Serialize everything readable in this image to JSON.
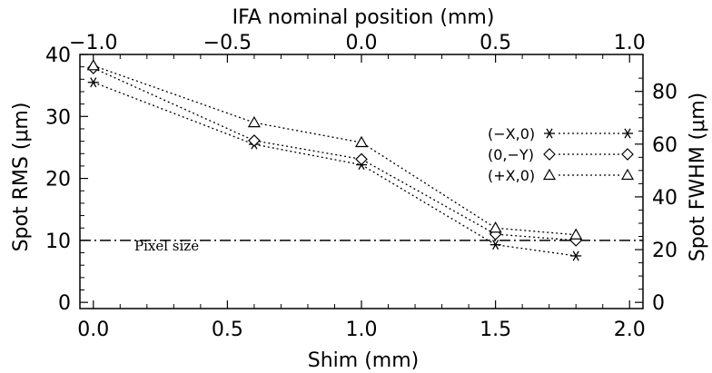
{
  "chart_data": {
    "type": "line",
    "x_axis": {
      "label": "Shim (mm)",
      "range": [
        -0.05,
        2.05
      ],
      "ticks": [
        0.0,
        0.5,
        1.0,
        1.5,
        2.0
      ],
      "tick_labels": [
        "0.0",
        "0.5",
        "1.0",
        "1.5",
        "2.0"
      ]
    },
    "x2_axis": {
      "label": "IFA nominal position (mm)",
      "tick_labels": [
        "−1.0",
        "−0.5",
        "0.0",
        "0.5",
        "1.0"
      ]
    },
    "y_axis": {
      "label": "Spot RMS (μm)",
      "range": [
        -1,
        40
      ],
      "ticks": [
        0,
        10,
        20,
        30,
        40
      ],
      "tick_labels": [
        "0",
        "10",
        "20",
        "30",
        "40"
      ]
    },
    "y2_axis": {
      "label": "Spot FWHM (μm)",
      "ticks": [
        0,
        20,
        40,
        60,
        80
      ],
      "tick_labels": [
        "0",
        "20",
        "40",
        "60",
        "80"
      ],
      "scale_factor": 2.35
    },
    "grid": false,
    "legend": {
      "placement": "right",
      "entries": [
        {
          "label": "(−X,0)",
          "marker": "asterisk"
        },
        {
          "label": "(0,−Y)",
          "marker": "diamond"
        },
        {
          "label": "(+X,0)",
          "marker": "triangle"
        }
      ]
    },
    "x": [
      0.0,
      0.6,
      1.0,
      1.5,
      1.8
    ],
    "series": [
      {
        "name": "(−X,0)",
        "marker": "asterisk",
        "values": [
          35.5,
          25.5,
          22.2,
          9.3,
          7.5
        ]
      },
      {
        "name": "(0,−Y)",
        "marker": "diamond",
        "values": [
          37.8,
          26.1,
          23.1,
          11.0,
          10.0
        ]
      },
      {
        "name": "(+X,0)",
        "marker": "triangle",
        "values": [
          38.2,
          29.0,
          25.8,
          12.0,
          10.9
        ]
      }
    ],
    "reference_line": {
      "y": 10,
      "label": "Pixel size",
      "style": "dash-dot"
    }
  }
}
